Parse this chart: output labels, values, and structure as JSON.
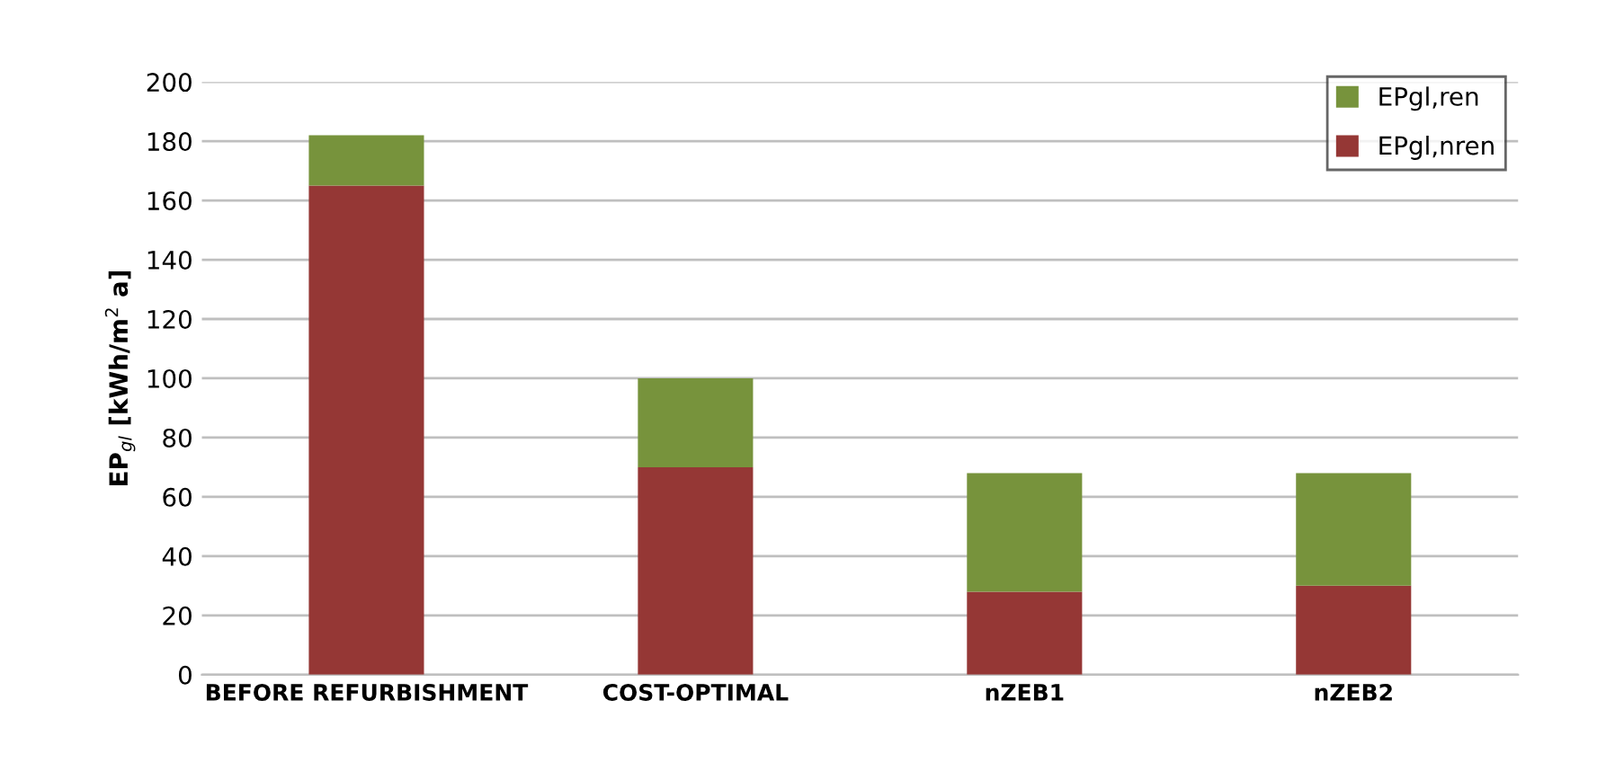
{
  "chart_data": {
    "type": "bar",
    "stacked": true,
    "ylabel": "EP$_{gl}$ [kWh/m$^{2}$ a]",
    "categories": [
      "BEFORE REFURBISHMENT",
      "COST-OPTIMAL",
      "nZEB1",
      "nZEB2"
    ],
    "series": [
      {
        "name": "EPgl,nren",
        "color": "#953735",
        "values": [
          165,
          70,
          28,
          30
        ]
      },
      {
        "name": "EPgl,ren",
        "color": "#77933c",
        "values": [
          17,
          30,
          40,
          38
        ]
      }
    ],
    "ylim": [
      0,
      200
    ],
    "yticks": [
      0,
      20,
      40,
      60,
      80,
      100,
      120,
      140,
      160,
      180,
      200
    ],
    "grid": "y",
    "legend": "top right"
  }
}
